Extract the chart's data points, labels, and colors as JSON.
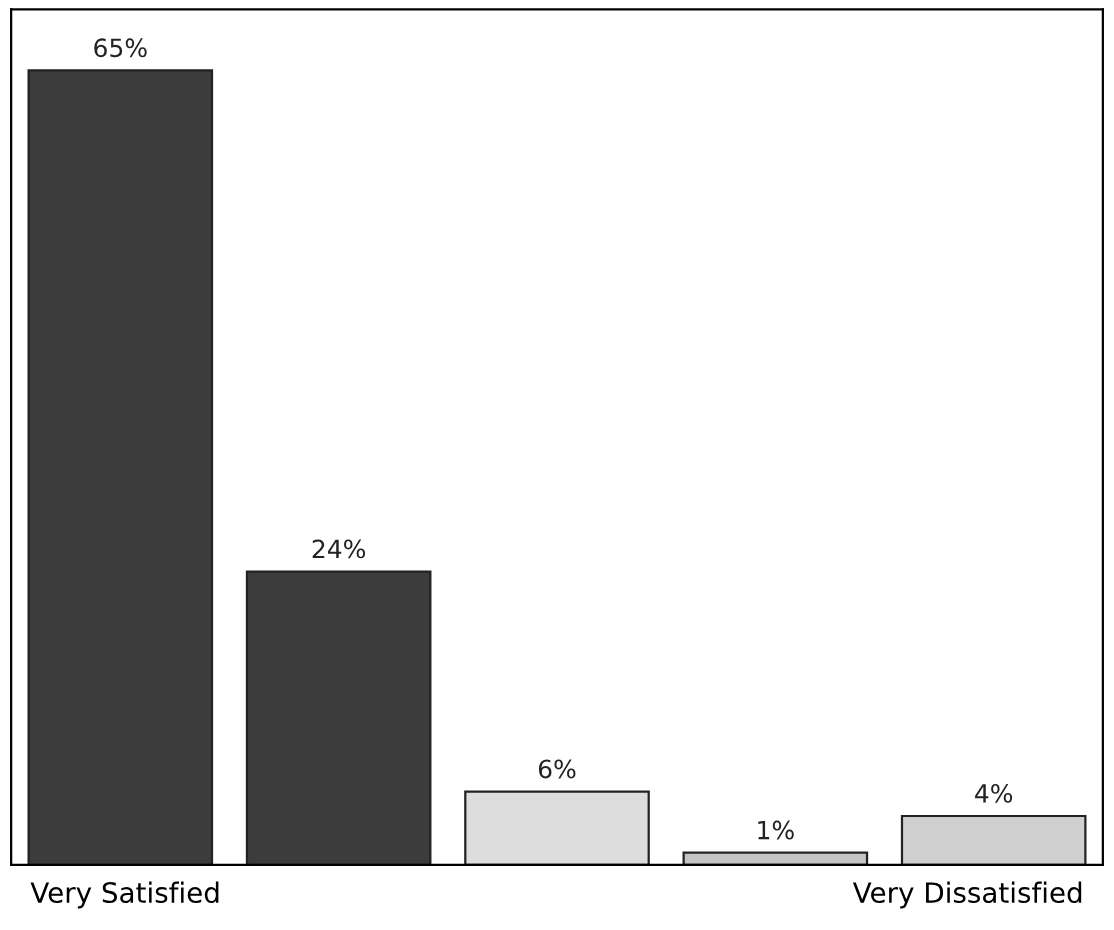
{
  "chart_data": {
    "type": "bar",
    "categories": [
      "Very Satisfied",
      null,
      null,
      null,
      "Very Dissatisfied"
    ],
    "values": [
      65,
      24,
      6,
      1,
      4
    ],
    "value_labels": [
      "65%",
      "24%",
      "6%",
      "1%",
      "4%"
    ],
    "colors": [
      "#3c3c3c",
      "#3c3c3c",
      "#dcdcdc",
      "#c4c4c4",
      "#cfcfcf"
    ],
    "ylim": [
      0,
      70
    ],
    "tick_labels": "x",
    "grid": false,
    "legend": false
  }
}
